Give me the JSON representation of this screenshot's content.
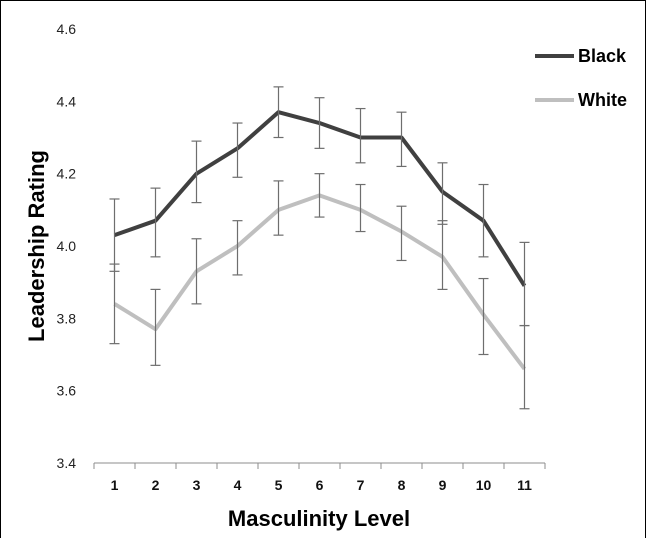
{
  "chart_data": {
    "type": "line",
    "title": "",
    "xlabel": "Masculinity Level",
    "ylabel": "Leadership Rating",
    "categories": [
      "1",
      "2",
      "3",
      "4",
      "5",
      "6",
      "7",
      "8",
      "9",
      "10",
      "11"
    ],
    "ylim": [
      3.4,
      4.6
    ],
    "yticks": [
      "3.4",
      "3.6",
      "3.8",
      "4.0",
      "4.2",
      "4.4",
      "4.6"
    ],
    "grid": false,
    "legend_position": "top-right",
    "series": [
      {
        "name": "Black",
        "color": "#404040",
        "values": [
          4.03,
          4.07,
          4.2,
          4.27,
          4.37,
          4.34,
          4.3,
          4.3,
          4.15,
          4.07,
          3.89
        ],
        "error_low": [
          3.93,
          3.97,
          4.12,
          4.19,
          4.3,
          4.27,
          4.23,
          4.22,
          4.06,
          3.97,
          3.78
        ],
        "error_high": [
          4.13,
          4.16,
          4.29,
          4.34,
          4.44,
          4.41,
          4.38,
          4.37,
          4.23,
          4.17,
          4.01
        ]
      },
      {
        "name": "White",
        "color": "#bfbfbf",
        "values": [
          3.84,
          3.77,
          3.93,
          4.0,
          4.1,
          4.14,
          4.1,
          4.04,
          3.97,
          3.81,
          3.66
        ],
        "error_low": [
          3.73,
          3.67,
          3.84,
          3.92,
          4.03,
          4.08,
          4.04,
          3.96,
          3.88,
          3.7,
          3.55
        ],
        "error_high": [
          3.95,
          3.88,
          4.02,
          4.07,
          4.18,
          4.2,
          4.17,
          4.11,
          4.07,
          3.91,
          3.78
        ]
      }
    ]
  }
}
